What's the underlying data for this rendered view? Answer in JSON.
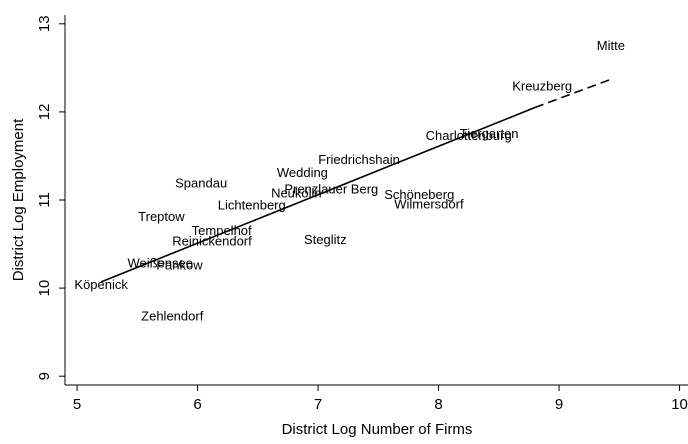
{
  "chart_data": {
    "type": "scatter",
    "xlabel": "District Log Number of Firms",
    "ylabel": "District Log Employment",
    "xlim": [
      4.9,
      10.07
    ],
    "ylim": [
      8.9,
      13.1
    ],
    "xticks": [
      5,
      6,
      7,
      8,
      9,
      10
    ],
    "yticks": [
      9,
      10,
      11,
      12,
      13
    ],
    "points": [
      {
        "label": "Mitte",
        "x": 9.43,
        "y": 12.74
      },
      {
        "label": "Kreuzberg",
        "x": 8.86,
        "y": 12.28
      },
      {
        "label": "Charlottenburg",
        "x": 8.25,
        "y": 11.72
      },
      {
        "label": "Tiergarten",
        "x": 8.42,
        "y": 11.74
      },
      {
        "label": "Friedrichshain",
        "x": 7.34,
        "y": 11.45
      },
      {
        "label": "Wedding",
        "x": 6.87,
        "y": 11.3
      },
      {
        "label": "Spandau",
        "x": 6.03,
        "y": 11.18
      },
      {
        "label": "Prenzlauer Berg",
        "x": 7.11,
        "y": 11.11
      },
      {
        "label": "Neukölln",
        "x": 6.82,
        "y": 11.07
      },
      {
        "label": "Schöneberg",
        "x": 7.84,
        "y": 11.05
      },
      {
        "label": "Wilmersdorf",
        "x": 7.92,
        "y": 10.94
      },
      {
        "label": "Lichtenberg",
        "x": 6.45,
        "y": 10.93
      },
      {
        "label": "Treptow",
        "x": 5.7,
        "y": 10.8
      },
      {
        "label": "Tempelhof",
        "x": 6.2,
        "y": 10.64
      },
      {
        "label": "Steglitz",
        "x": 7.06,
        "y": 10.54
      },
      {
        "label": "Reinickendorf",
        "x": 6.12,
        "y": 10.52
      },
      {
        "label": "Weißensee",
        "x": 5.69,
        "y": 10.27
      },
      {
        "label": "Pankow",
        "x": 5.85,
        "y": 10.25
      },
      {
        "label": "Köpenick",
        "x": 5.2,
        "y": 10.03
      },
      {
        "label": "Zehlendorf",
        "x": 5.79,
        "y": 9.67
      }
    ],
    "fit_line": {
      "x": [
        5.2,
        8.8,
        9.45
      ],
      "y": [
        10.07,
        12.05,
        12.38
      ]
    }
  }
}
